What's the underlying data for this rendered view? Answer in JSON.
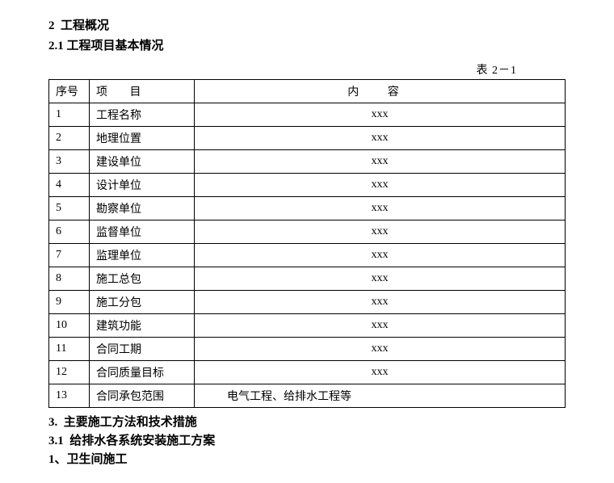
{
  "section2": {
    "number": "2",
    "title": "工程概况"
  },
  "section21": {
    "number": "2.1",
    "title": "工程项目基本情况"
  },
  "table_label": "表 2－1",
  "table": {
    "headers": {
      "seq": "序号",
      "item": "项  目",
      "content": "内  容"
    },
    "rows": [
      {
        "seq": "1",
        "item": "工程名称",
        "content": "xxx"
      },
      {
        "seq": "2",
        "item": "地理位置",
        "content": "xxx"
      },
      {
        "seq": "3",
        "item": "建设单位",
        "content": "xxx"
      },
      {
        "seq": "4",
        "item": "设计单位",
        "content": "xxx"
      },
      {
        "seq": "5",
        "item": "勘察单位",
        "content": "xxx"
      },
      {
        "seq": "6",
        "item": "监督单位",
        "content": "xxx"
      },
      {
        "seq": "7",
        "item": "监理单位",
        "content": "xxx"
      },
      {
        "seq": "8",
        "item": "施工总包",
        "content": "xxx"
      },
      {
        "seq": "9",
        "item": "施工分包",
        "content": "xxx"
      },
      {
        "seq": "10",
        "item": "建筑功能",
        "content": "xxx"
      },
      {
        "seq": "11",
        "item": "合同工期",
        "content": "xxx"
      },
      {
        "seq": "12",
        "item": "合同质量目标",
        "content": "xxx"
      },
      {
        "seq": "13",
        "item": "合同承包范围",
        "content": "电气工程、给排水工程等",
        "left": true
      }
    ]
  },
  "section3": {
    "number": "3.",
    "title": "主要施工方法和技术措施"
  },
  "section31": {
    "number": "3.1",
    "title": "给排水各系统安装施工方案"
  },
  "item1": {
    "text": "1、卫生间施工"
  }
}
